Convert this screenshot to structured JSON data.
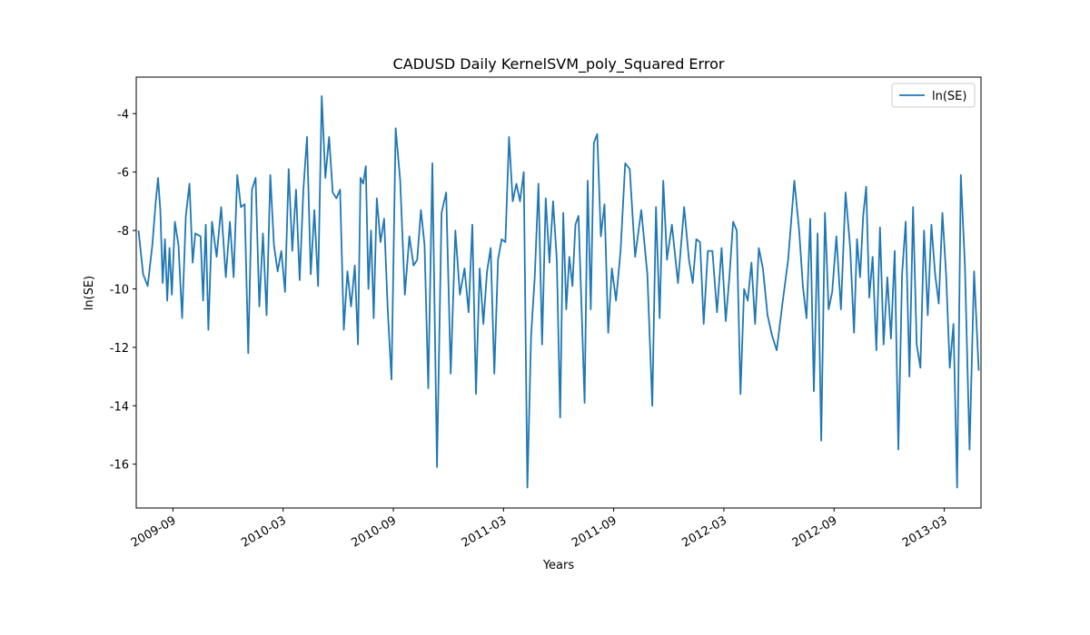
{
  "chart_data": {
    "type": "line",
    "title": "CADUSD Daily KernelSVM_poly_Squared Error",
    "x_label": "Years",
    "y_label": "ln(SE)",
    "x": [
      "2009-07",
      "2009-07",
      "2009-07",
      "2009-07",
      "2009-08",
      "2009-08",
      "2009-08",
      "2009-08",
      "2009-08",
      "2009-08",
      "2009-08",
      "2009-08",
      "2009-09",
      "2009-09",
      "2009-09",
      "2009-09",
      "2009-09",
      "2009-10",
      "2009-10",
      "2009-10",
      "2009-10",
      "2009-10",
      "2009-10",
      "2009-10",
      "2009-11",
      "2009-11",
      "2009-11",
      "2009-11",
      "2009-12",
      "2009-12",
      "2009-12",
      "2009-12",
      "2009-12",
      "2010-01",
      "2010-01",
      "2010-01",
      "2010-01",
      "2010-01",
      "2010-02",
      "2010-02",
      "2010-02",
      "2010-02",
      "2010-02",
      "2010-03",
      "2010-03",
      "2010-03",
      "2010-03",
      "2010-03",
      "2010-04",
      "2010-04",
      "2010-04",
      "2010-04",
      "2010-04",
      "2010-05",
      "2010-05",
      "2010-05",
      "2010-05",
      "2010-05",
      "2010-06",
      "2010-06",
      "2010-06",
      "2010-06",
      "2010-06",
      "2010-07",
      "2010-07",
      "2010-07",
      "2010-07",
      "2010-07",
      "2010-07",
      "2010-07",
      "2010-08",
      "2010-08",
      "2010-08",
      "2010-08",
      "2010-08",
      "2010-09",
      "2010-09",
      "2010-09",
      "2010-09",
      "2010-10",
      "2010-10",
      "2010-10",
      "2010-10",
      "2010-10",
      "2010-11",
      "2010-11",
      "2010-11",
      "2010-11",
      "2010-12",
      "2010-12",
      "2010-12",
      "2010-12",
      "2011-01",
      "2011-01",
      "2011-01",
      "2011-01",
      "2011-01",
      "2011-02",
      "2011-02",
      "2011-02",
      "2011-02",
      "2011-02",
      "2011-03",
      "2011-03",
      "2011-03",
      "2011-03",
      "2011-03",
      "2011-04",
      "2011-04",
      "2011-04",
      "2011-04",
      "2011-04",
      "2011-05",
      "2011-05",
      "2011-05",
      "2011-05",
      "2011-05",
      "2011-06",
      "2011-06",
      "2011-06",
      "2011-06",
      "2011-06",
      "2011-06",
      "2011-07",
      "2011-07",
      "2011-07",
      "2011-07",
      "2011-07",
      "2011-07",
      "2011-08",
      "2011-08",
      "2011-08",
      "2011-08",
      "2011-08",
      "2011-09",
      "2011-09",
      "2011-09",
      "2011-09",
      "2011-10",
      "2011-10",
      "2011-10",
      "2011-11",
      "2011-11",
      "2011-11",
      "2011-11",
      "2011-11",
      "2011-12",
      "2011-12",
      "2011-12",
      "2012-01",
      "2012-01",
      "2012-01",
      "2012-01",
      "2012-01",
      "2012-02",
      "2012-02",
      "2012-02",
      "2012-02",
      "2012-03",
      "2012-03",
      "2012-03",
      "2012-03",
      "2012-03",
      "2012-04",
      "2012-04",
      "2012-04",
      "2012-04",
      "2012-04",
      "2012-05",
      "2012-05",
      "2012-05",
      "2012-05",
      "2012-06",
      "2012-06",
      "2012-06",
      "2012-07",
      "2012-07",
      "2012-07",
      "2012-07",
      "2012-07",
      "2012-08",
      "2012-08",
      "2012-08",
      "2012-08",
      "2012-08",
      "2012-09",
      "2012-09",
      "2012-09",
      "2012-09",
      "2012-10",
      "2012-10",
      "2012-10",
      "2012-10",
      "2012-10",
      "2012-10",
      "2012-11",
      "2012-11",
      "2012-11",
      "2012-11",
      "2012-11",
      "2012-12",
      "2012-12",
      "2012-12",
      "2012-12",
      "2012-12",
      "2013-01",
      "2013-01",
      "2013-01",
      "2013-01",
      "2013-01",
      "2013-02",
      "2013-02",
      "2013-02",
      "2013-02",
      "2013-02",
      "2013-03",
      "2013-03",
      "2013-03",
      "2013-03",
      "2013-03",
      "2013-04",
      "2013-04",
      "2013-04",
      "2013-04"
    ],
    "series": [
      {
        "name": "ln(SE)",
        "color": "#1f77b4",
        "values": [
          -8,
          -9.5,
          -9.9,
          -8.5,
          -7,
          -6.2,
          -7.3,
          -9.8,
          -8.3,
          -10.4,
          -8.6,
          -10.2,
          -7.7,
          -8.5,
          -11,
          -7.5,
          -6.4,
          -9.1,
          -8.1,
          -8.15,
          -8.2,
          -10.4,
          -7.8,
          -11.4,
          -7.7,
          -8.9,
          -7.2,
          -9.6,
          -7.7,
          -9.6,
          -6.1,
          -7.2,
          -7.1,
          -12.2,
          -6.6,
          -6.2,
          -10.6,
          -8.1,
          -10.9,
          -6.1,
          -8.5,
          -9.4,
          -8.7,
          -10.1,
          -5.9,
          -8.7,
          -6.6,
          -9.7,
          -6.6,
          -4.8,
          -9.5,
          -7.3,
          -9.9,
          -3.4,
          -6.2,
          -4.8,
          -6.7,
          -6.9,
          -6.6,
          -11.4,
          -9.4,
          -10.6,
          -9.2,
          -11.9,
          -6.2,
          -6.4,
          -5.8,
          -10.0,
          -8.0,
          -11.0,
          -6.9,
          -8.4,
          -7.6,
          -10.8,
          -13.1,
          -4.5,
          -6.3,
          -10.2,
          -8.2,
          -9.2,
          -9.0,
          -7.3,
          -8.5,
          -13.4,
          -5.7,
          -16.1,
          -7.4,
          -6.7,
          -12.9,
          -8.0,
          -10.2,
          -9.3,
          -10.8,
          -7.8,
          -13.6,
          -9.3,
          -11.2,
          -9.4,
          -8.6,
          -12.9,
          -9.0,
          -8.3,
          -8.4,
          -4.8,
          -7.0,
          -6.4,
          -7.0,
          -6.0,
          -16.8,
          -11.6,
          -9.6,
          -6.4,
          -11.9,
          -6.9,
          -9.1,
          -7.0,
          -9.0,
          -14.4,
          -7.4,
          -10.7,
          -8.9,
          -9.9,
          -7.8,
          -7.5,
          -10.7,
          -13.9,
          -6.3,
          -10.7,
          -5.0,
          -4.7,
          -8.2,
          -7.1,
          -11.5,
          -9.3,
          -10.4,
          -8.7,
          -5.7,
          -5.9,
          -8.9,
          -7.3,
          -9.5,
          -14.0,
          -7.2,
          -11.0,
          -6.3,
          -9.0,
          -7.8,
          -9.8,
          -7.2,
          -9.0,
          -9.8,
          -8.3,
          -8.4,
          -11.2,
          -8.7,
          -8.7,
          -10.8,
          -8.6,
          -11.1,
          -9.6,
          -7.7,
          -8.0,
          -13.6,
          -10.0,
          -10.4,
          -9.1,
          -11.2,
          -8.6,
          -9.3,
          -10.9,
          -11.6,
          -12.1,
          -10.6,
          -9.0,
          -6.3,
          -8.0,
          -9.9,
          -11.0,
          -7.6,
          -13.5,
          -8.1,
          -15.2,
          -7.4,
          -10.7,
          -10.1,
          -8.2,
          -10.7,
          -6.7,
          -8.6,
          -11.5,
          -8.3,
          -9.6,
          -7.5,
          -6.5,
          -10.3,
          -8.9,
          -12.1,
          -7.9,
          -11.9,
          -9.6,
          -11.7,
          -8.7,
          -15.5,
          -9.5,
          -7.7,
          -13.0,
          -7.2,
          -11.9,
          -12.7,
          -8.0,
          -10.9,
          -7.8,
          -9.5,
          -10.5,
          -7.4,
          -9.5,
          -12.7,
          -11.2,
          -16.8,
          -6.1,
          -9.2,
          -15.5,
          -9.4,
          -12.8
        ]
      }
    ],
    "xlim": [
      "2009-07",
      "2013-05"
    ],
    "xticks": [
      "2009-09",
      "2010-03",
      "2010-09",
      "2011-03",
      "2011-09",
      "2012-03",
      "2012-09",
      "2013-03"
    ],
    "ylim": [
      -17.5,
      -2.75
    ],
    "yticks": [
      -16,
      -14,
      -12,
      -10,
      -8,
      -6,
      -4
    ],
    "grid": false,
    "legend": "upper right"
  }
}
